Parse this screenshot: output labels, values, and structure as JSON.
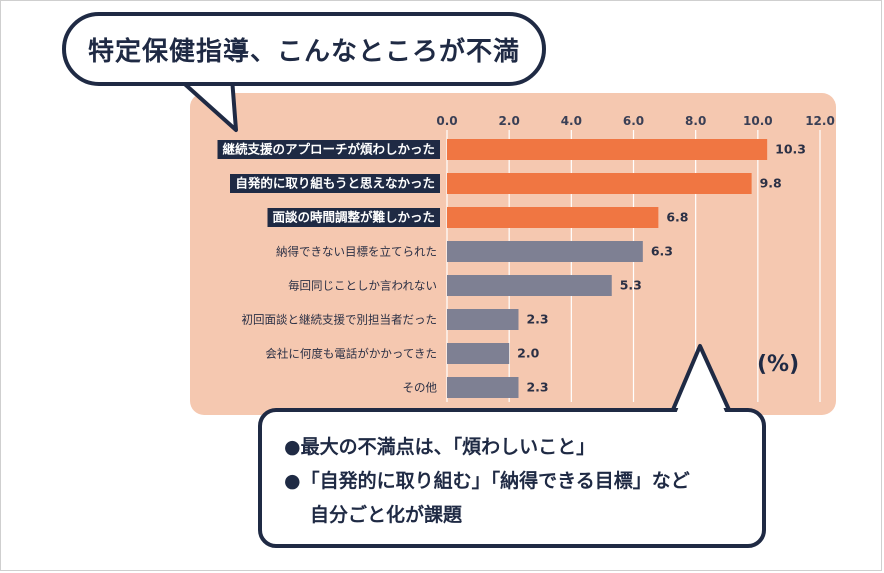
{
  "title": "特定保健指導、こんなところが不満",
  "unit_label": "(%)",
  "summary": [
    "●最大の不満点は、「煩わしいこと」",
    "●「自発的に取り組む」「納得できる目標」など",
    "自分ごと化が課題"
  ],
  "colors": {
    "highlight": "#f07642",
    "normal": "#7e8093",
    "panel": "#f5c8b0",
    "navy": "#1f2a44"
  },
  "chart_data": {
    "type": "bar",
    "orientation": "horizontal",
    "categories": [
      "継続支援のアプローチが煩わしかった",
      "自発的に取り組もうと思えなかった",
      "面談の時間調整が難しかった",
      "納得できない目標を立てられた",
      "毎回同じことしか言われない",
      "初回面談と継続支援で別担当者だった",
      "会社に何度も電話がかかってきた",
      "その他"
    ],
    "values": [
      10.3,
      9.8,
      6.8,
      6.3,
      5.3,
      2.3,
      2.0,
      2.3
    ],
    "value_labels": [
      "10.3",
      "9.8",
      "6.8",
      "6.3",
      "5.3",
      "2.3",
      "2.0",
      "2.3"
    ],
    "highlighted": [
      true,
      true,
      true,
      false,
      false,
      false,
      false,
      false
    ],
    "xlim": [
      0,
      12
    ],
    "ticks": [
      "0.0",
      "2.0",
      "4.0",
      "6.0",
      "8.0",
      "10.0",
      "12.0"
    ],
    "tick_values": [
      0,
      2,
      4,
      6,
      8,
      10,
      12
    ],
    "grid": true,
    "xlabel": "",
    "ylabel": ""
  }
}
